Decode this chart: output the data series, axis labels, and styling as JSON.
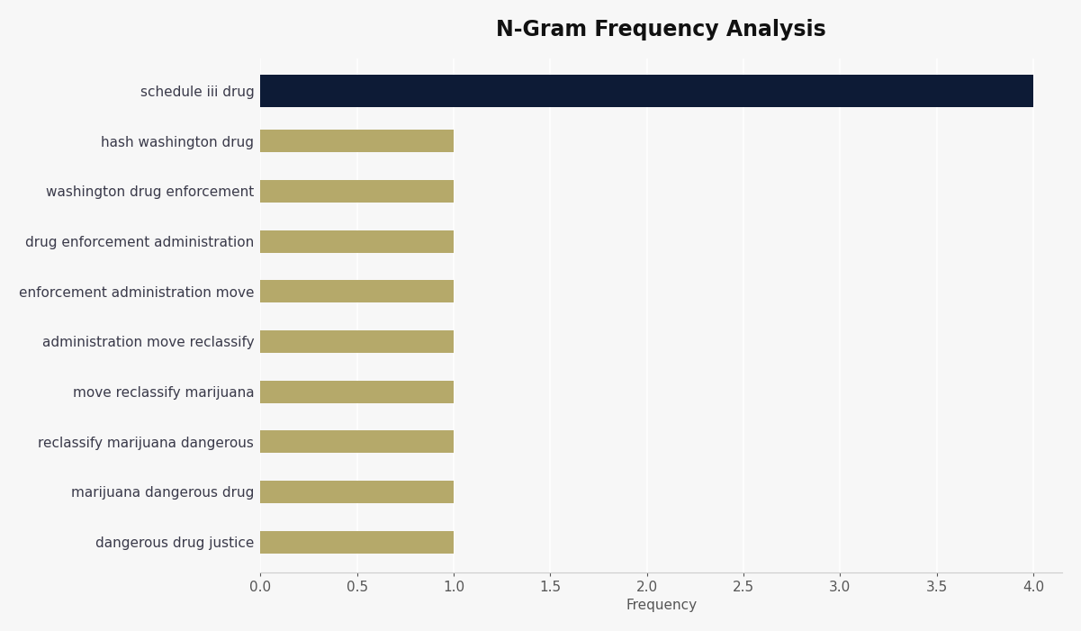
{
  "title": "N-Gram Frequency Analysis",
  "categories": [
    "dangerous drug justice",
    "marijuana dangerous drug",
    "reclassify marijuana dangerous",
    "move reclassify marijuana",
    "administration move reclassify",
    "enforcement administration move",
    "drug enforcement administration",
    "washington drug enforcement",
    "hash washington drug",
    "schedule iii drug"
  ],
  "values": [
    1,
    1,
    1,
    1,
    1,
    1,
    1,
    1,
    1,
    4
  ],
  "bar_colors": [
    "#b5a96a",
    "#b5a96a",
    "#b5a96a",
    "#b5a96a",
    "#b5a96a",
    "#b5a96a",
    "#b5a96a",
    "#b5a96a",
    "#b5a96a",
    "#0d1b36"
  ],
  "xlabel": "Frequency",
  "ylabel": "",
  "xlim": [
    0,
    4.15
  ],
  "xticks": [
    0.0,
    0.5,
    1.0,
    1.5,
    2.0,
    2.5,
    3.0,
    3.5,
    4.0
  ],
  "background_color": "#f7f7f7",
  "title_fontsize": 17,
  "label_fontsize": 11,
  "tick_fontsize": 11,
  "bar_height": 0.45,
  "top_bar_height": 0.65
}
